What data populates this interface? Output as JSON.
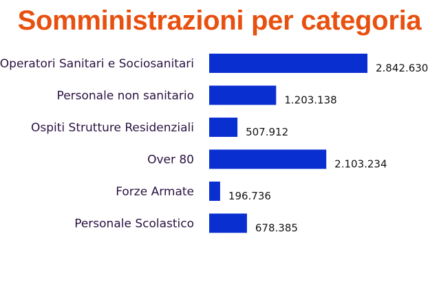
{
  "colors": {
    "title": "#e8500f",
    "bar": "#0a2fd0",
    "category_text": "#2a1040",
    "value_text": "#111111",
    "background": "#ffffff"
  },
  "chart_data": {
    "type": "bar",
    "orientation": "horizontal",
    "title": "Somministrazioni per categoria",
    "xlabel": "",
    "ylabel": "",
    "grid": false,
    "legend": "none",
    "xlim": [
      0,
      2842630
    ],
    "categories": [
      "Operatori Sanitari e Sociosanitari",
      "Personale non sanitario",
      "Ospiti Strutture Residenziali",
      "Over 80",
      "Forze Armate",
      "Personale Scolastico"
    ],
    "values": [
      2842630,
      1203138,
      507912,
      2103234,
      196736,
      678385
    ],
    "value_labels": [
      "2.842.630",
      "1.203.138",
      "507.912",
      "2.103.234",
      "196.736",
      "678.385"
    ]
  }
}
